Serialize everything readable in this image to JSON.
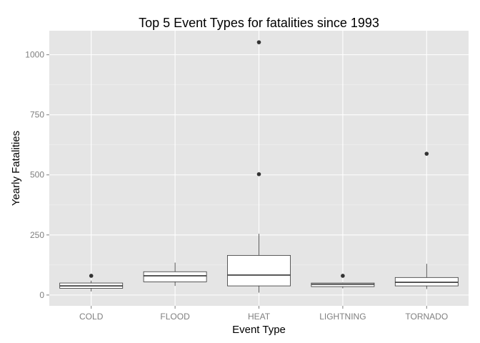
{
  "chart_data": {
    "type": "box",
    "title": "Top 5 Event Types for fatalities since 1993",
    "xlabel": "Event Type",
    "ylabel": "Yearly Fatalities",
    "ylim": [
      -45,
      1100
    ],
    "yticks": [
      0,
      250,
      500,
      750,
      1000
    ],
    "ytick_labels": [
      "0",
      "250",
      "500",
      "750",
      "1000"
    ],
    "grid": true,
    "colors": {
      "panel": "#e5e5e5",
      "grid_major": "#ffffff",
      "grid_minor": "#f2f2f2",
      "box_fill": "#ffffff",
      "box_stroke": "#333333",
      "outlier": "#333333",
      "tick_text": "#7f7f7f",
      "tick_mark": "#7f7f7f"
    },
    "categories": [
      "COLD",
      "FLOOD",
      "HEAT",
      "LIGHTNING",
      "TORNADO"
    ],
    "boxes": [
      {
        "category": "COLD",
        "whisker_low": 15,
        "q1": 28,
        "median": 38,
        "q3": 50,
        "whisker_high": 60,
        "outliers": [
          80
        ]
      },
      {
        "category": "FLOOD",
        "whisker_low": 38,
        "q1": 55,
        "median": 80,
        "q3": 97,
        "whisker_high": 135,
        "outliers": []
      },
      {
        "category": "HEAT",
        "whisker_low": 10,
        "q1": 38,
        "median": 83,
        "q3": 165,
        "whisker_high": 255,
        "outliers": [
          503,
          1052
        ]
      },
      {
        "category": "LIGHTNING",
        "whisker_low": 28,
        "q1": 35,
        "median": 45,
        "q3": 50,
        "whisker_high": 52,
        "outliers": [
          80
        ]
      },
      {
        "category": "TORNADO",
        "whisker_low": 25,
        "q1": 38,
        "median": 53,
        "q3": 73,
        "whisker_high": 130,
        "outliers": [
          588
        ]
      }
    ]
  }
}
